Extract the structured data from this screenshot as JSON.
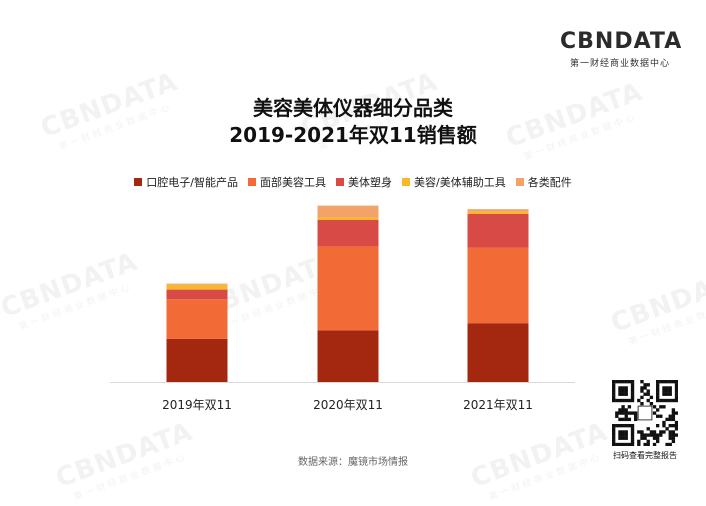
{
  "logo": {
    "main": "CBNDATA",
    "sub": "第一财经商业数据中心"
  },
  "watermark": {
    "main": "CBNDATA",
    "sub": "第一财经商业数据中心"
  },
  "chart_data": {
    "type": "bar",
    "stacked": true,
    "title": "美容美体仪器细分品类",
    "subtitle": "2019-2021年双11销售额",
    "categories": [
      "2019年双11",
      "2020年双11",
      "2021年双11"
    ],
    "series": [
      {
        "name": "口腔电子/智能产品",
        "color": "#a3280f",
        "values": [
          36,
          43,
          49
        ]
      },
      {
        "name": "面部美容工具",
        "color": "#f26a35",
        "values": [
          33,
          70,
          63
        ]
      },
      {
        "name": "美体塑身",
        "color": "#d84a45",
        "values": [
          8,
          22,
          28
        ]
      },
      {
        "name": "美容/美体辅助工具",
        "color": "#f7b929",
        "values": [
          4,
          2,
          2
        ]
      },
      {
        "name": "各类配件",
        "color": "#f3a36a",
        "values": [
          1,
          10,
          2
        ]
      }
    ],
    "ylim": [
      0,
      150
    ],
    "grid": false,
    "legend_position": "top"
  },
  "source": "数据来源：魔镜市场情报",
  "qr": {
    "label": "扫码查看完整报告"
  }
}
